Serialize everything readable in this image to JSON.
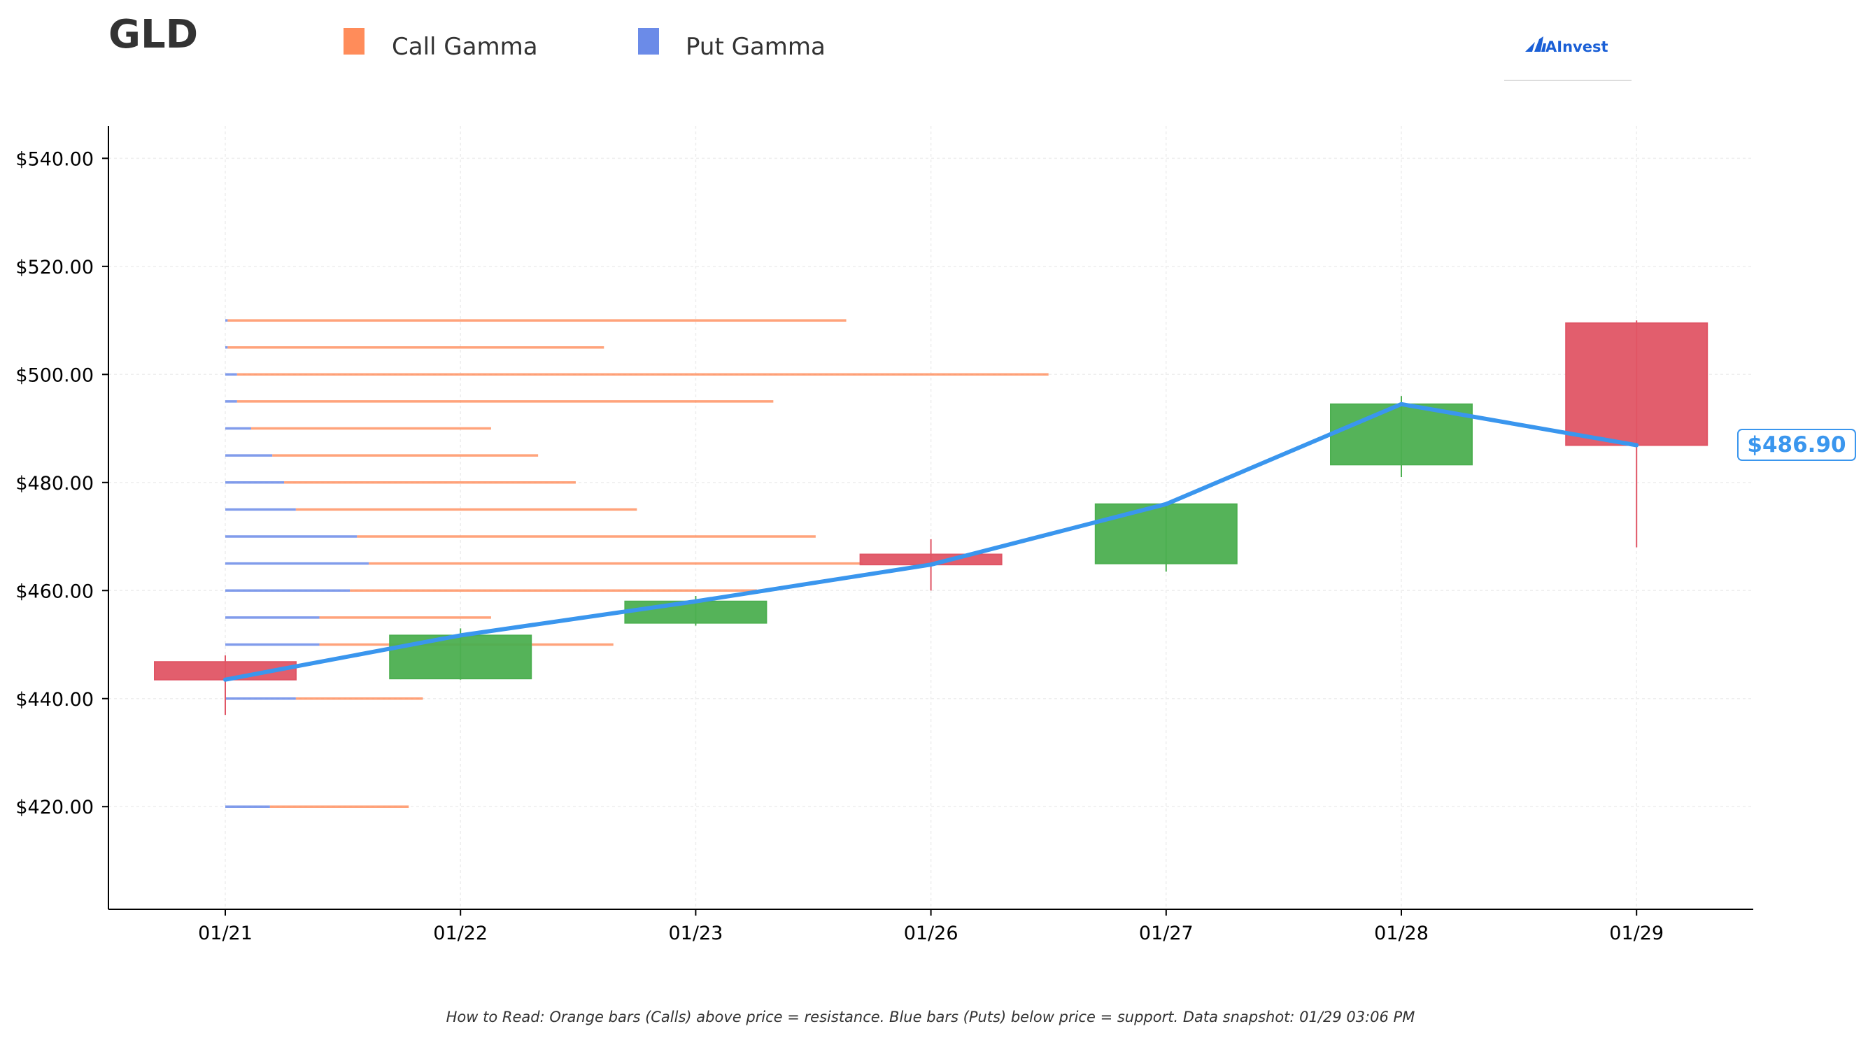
{
  "title": "GLD",
  "legend": [
    {
      "label": "Call Gamma",
      "color": "#ff8c5a"
    },
    {
      "label": "Put Gamma",
      "color": "#6b8be8"
    }
  ],
  "logo": {
    "text": "AInvest",
    "color": "#1a5fd6"
  },
  "current_price_label": "$486.90",
  "footnote": "How to Read: Orange bars (Calls) above price = resistance. Blue bars (Puts) below price = support. Data snapshot: 01/29 03:06 PM",
  "colors": {
    "up": "#4caf50",
    "down": "#e05565",
    "price_line": "#3a96ee",
    "axis": "#000000",
    "grid": "#eeeeee"
  },
  "chart_data": {
    "type": "candlestick",
    "categories": [
      "01/21",
      "01/22",
      "01/23",
      "01/26",
      "01/27",
      "01/28",
      "01/29"
    ],
    "ylim": [
      401,
      546
    ],
    "yticks": [
      420,
      440,
      460,
      480,
      500,
      520,
      540
    ],
    "ytick_labels": [
      "$420.00",
      "$440.00",
      "$460.00",
      "$480.00",
      "$500.00",
      "$520.00",
      "$540.00"
    ],
    "candles": [
      {
        "date": "01/21",
        "open": 446.8,
        "high": 448.0,
        "low": 437.0,
        "close": 443.5
      },
      {
        "date": "01/22",
        "open": 443.7,
        "high": 453.0,
        "low": 443.5,
        "close": 451.7
      },
      {
        "date": "01/23",
        "open": 454.0,
        "high": 459.0,
        "low": 453.5,
        "close": 458.0
      },
      {
        "date": "01/26",
        "open": 466.7,
        "high": 469.5,
        "low": 460.0,
        "close": 464.8
      },
      {
        "date": "01/27",
        "open": 465.0,
        "high": 476.0,
        "low": 463.5,
        "close": 476.0
      },
      {
        "date": "01/28",
        "open": 483.3,
        "high": 496.0,
        "low": 481.0,
        "close": 494.5
      },
      {
        "date": "01/29",
        "open": 509.5,
        "high": 510.0,
        "low": 468.0,
        "close": 486.9
      }
    ],
    "price_line": {
      "x": [
        "01/21",
        "01/22",
        "01/23",
        "01/26",
        "01/27",
        "01/28",
        "01/29"
      ],
      "y": [
        443.5,
        451.7,
        458.0,
        464.8,
        476.0,
        494.5,
        486.9
      ]
    },
    "gamma": {
      "x_scale_note": "relative exposure, one date-slot = 1.0",
      "strikes": [
        510,
        505,
        500,
        495,
        490,
        485,
        480,
        475,
        470,
        465,
        460,
        455,
        450,
        440,
        420
      ],
      "put_gamma": [
        0.01,
        0.01,
        0.05,
        0.05,
        0.11,
        0.2,
        0.25,
        0.3,
        0.56,
        0.61,
        0.53,
        0.4,
        0.4,
        0.3,
        0.19
      ],
      "call_gamma": [
        2.63,
        1.6,
        3.45,
        2.28,
        1.02,
        1.13,
        1.24,
        1.45,
        1.95,
        2.1,
        1.73,
        0.73,
        1.25,
        0.54,
        0.59
      ]
    }
  }
}
